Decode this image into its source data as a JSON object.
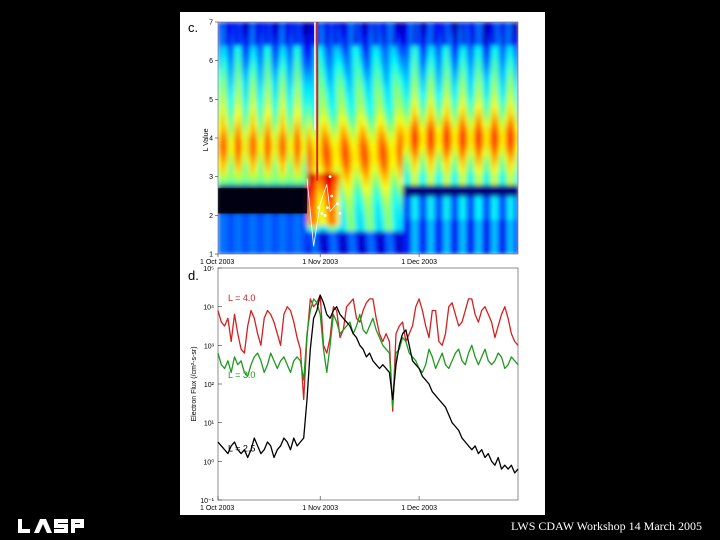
{
  "footer": "LWS CDAW Workshop 14 March 2005",
  "logo_text": "LASP",
  "colors": {
    "red": "#d42020",
    "green": "#1f9a1f",
    "black": "#000000"
  },
  "chart_data": [
    {
      "type": "heatmap",
      "panel_label": "c.",
      "ylabel": "L Value",
      "ylim": [
        1,
        7
      ],
      "yticks": [
        "1",
        "2",
        "3",
        "4",
        "5",
        "6",
        "7"
      ],
      "xticks": [
        "1 Oct 2003",
        "1 Nov 2003",
        "1 Dec 2003"
      ],
      "xlim_days": [
        0,
        91
      ]
    },
    {
      "type": "line",
      "panel_label": "d.",
      "ylabel": "Electron Flux (/cm²-s-sr)",
      "yscale": "log",
      "ylim": [
        -1,
        5
      ],
      "yticks": [
        "10⁻¹",
        "10⁰",
        "10¹",
        "10²",
        "10³",
        "10⁴",
        "10⁵"
      ],
      "xticks": [
        "1 Oct 2003",
        "1 Nov 2003",
        "1 Dec 2003"
      ],
      "series": [
        {
          "name": "L = 4.0",
          "color": "#d42020",
          "values": [
            3.9,
            3.6,
            3.5,
            3.7,
            3.1,
            3.8,
            3.3,
            2.9,
            2.8,
            3.5,
            3.9,
            3.7,
            3.3,
            3.0,
            3.7,
            3.9,
            3.8,
            3.6,
            3.3,
            3.0,
            3.8,
            4.0,
            3.9,
            3.6,
            3.2,
            2.9,
            1.6,
            3.2,
            4.2,
            4.0,
            4.1,
            4.3,
            3.0,
            2.8,
            3.2,
            4.0,
            3.9,
            3.2,
            3.4,
            4.0,
            4.1,
            4.2,
            3.7,
            3.6,
            3.9,
            4.1,
            4.2,
            4.2,
            3.7,
            3.3,
            3.1,
            3.3,
            3.1,
            1.3,
            3.3,
            3.5,
            3.6,
            3.1,
            3.3,
            3.5,
            4.0,
            4.2,
            3.9,
            3.5,
            3.2,
            3.9,
            3.9,
            3.1,
            3.0,
            3.3,
            4.0,
            4.1,
            3.8,
            3.5,
            3.6,
            3.9,
            4.2,
            4.2,
            3.8,
            3.6,
            3.9,
            4.0,
            3.8,
            3.6,
            3.2,
            3.5,
            3.8,
            4.0,
            3.7,
            3.3,
            3.1,
            3.0
          ]
        },
        {
          "name": "L = 3.0",
          "color": "#1f9a1f",
          "values": [
            2.8,
            2.5,
            2.4,
            2.6,
            2.3,
            2.7,
            2.5,
            2.6,
            2.3,
            2.2,
            2.5,
            2.7,
            2.8,
            2.6,
            2.3,
            2.5,
            2.8,
            2.6,
            2.4,
            2.6,
            2.7,
            2.5,
            2.3,
            2.6,
            2.7,
            2.6,
            2.1,
            3.3,
            3.9,
            4.2,
            4.1,
            3.8,
            2.9,
            2.3,
            3.0,
            3.8,
            3.6,
            3.3,
            3.4,
            3.5,
            3.6,
            3.3,
            3.5,
            3.8,
            3.4,
            3.3,
            3.5,
            3.7,
            3.4,
            3.2,
            3.0,
            2.9,
            2.8,
            1.4,
            2.8,
            2.9,
            3.2,
            3.1,
            2.8,
            2.7,
            2.6,
            2.4,
            2.3,
            2.5,
            2.9,
            2.7,
            2.4,
            2.6,
            2.8,
            2.5,
            2.4,
            2.6,
            2.8,
            2.9,
            2.6,
            2.5,
            2.8,
            3.0,
            2.7,
            2.5,
            2.7,
            2.9,
            2.6,
            2.5,
            2.6,
            2.8,
            2.7,
            2.4,
            2.5,
            2.7,
            2.6,
            2.5
          ]
        },
        {
          "name": "L = 2.5",
          "color": "#000000",
          "values": [
            0.5,
            0.4,
            0.3,
            0.2,
            0.4,
            0.5,
            0.3,
            0.2,
            0.3,
            0.1,
            0.3,
            0.6,
            0.4,
            0.2,
            0.3,
            0.5,
            0.4,
            0.1,
            0.3,
            0.4,
            0.6,
            0.5,
            0.3,
            0.6,
            0.4,
            0.5,
            0.6,
            1.6,
            2.9,
            3.7,
            3.9,
            4.3,
            4.1,
            3.8,
            3.7,
            3.9,
            4.0,
            3.8,
            3.7,
            3.6,
            3.5,
            3.3,
            3.2,
            3.0,
            2.9,
            2.7,
            2.8,
            2.6,
            2.5,
            2.4,
            2.5,
            2.4,
            2.3,
            1.6,
            2.5,
            3.0,
            3.3,
            3.4,
            3.0,
            2.6,
            2.5,
            2.4,
            2.2,
            2.1,
            2.0,
            1.8,
            1.7,
            1.6,
            1.5,
            1.4,
            1.2,
            1.0,
            0.9,
            0.8,
            0.6,
            0.5,
            0.4,
            0.3,
            0.4,
            0.2,
            0.3,
            0.1,
            0.2,
            0.0,
            -0.1,
            0.1,
            -0.2,
            -0.1,
            -0.2,
            -0.1,
            -0.3,
            -0.2
          ]
        }
      ],
      "legend": [
        "L = 4.0",
        "L = 3.0",
        "L = 2.5"
      ]
    }
  ]
}
